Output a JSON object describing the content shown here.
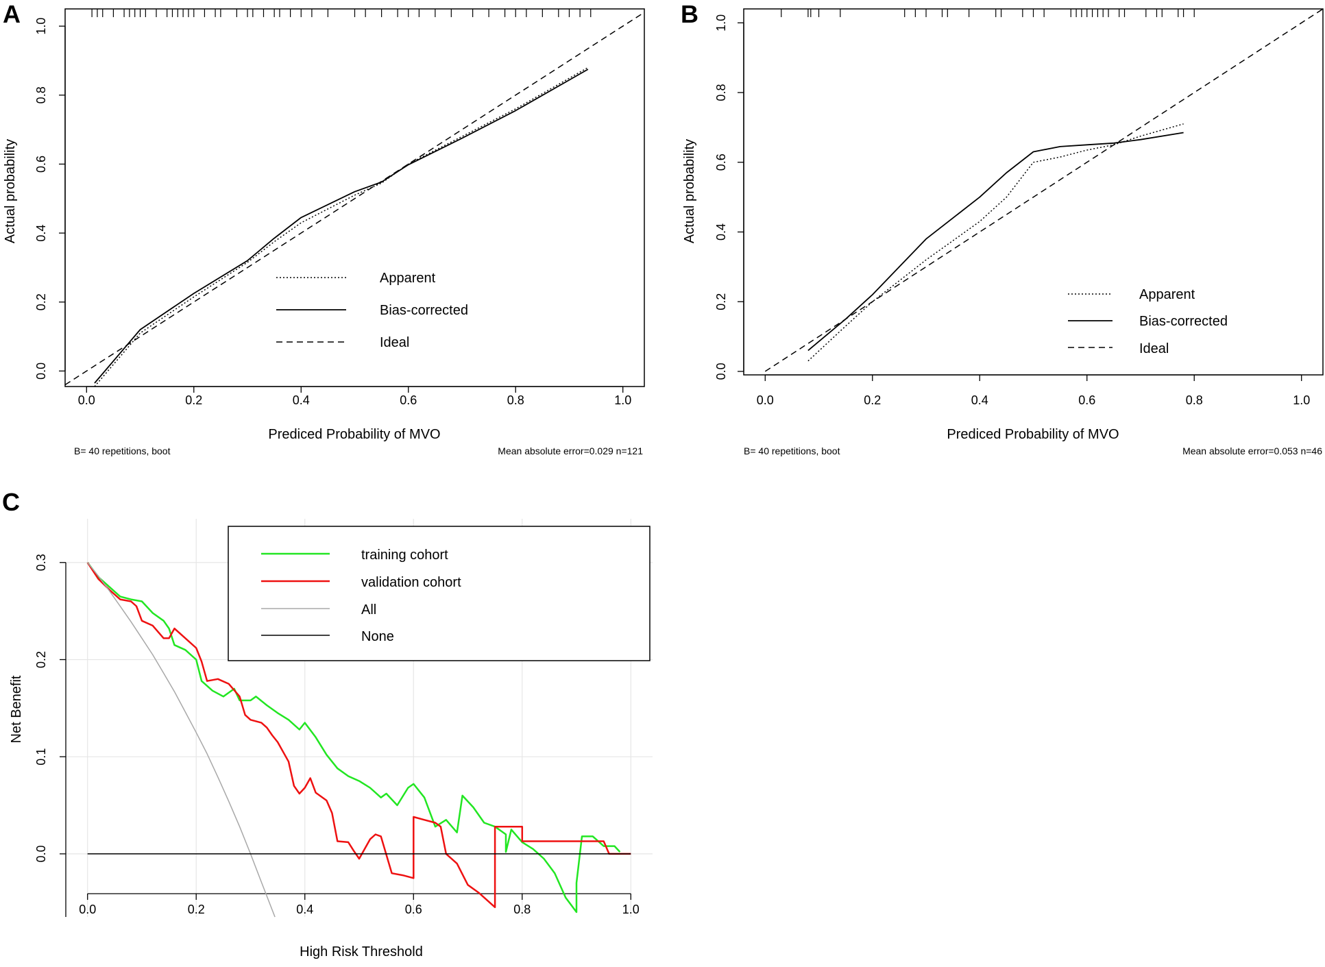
{
  "chart_data": [
    {
      "panel": "A",
      "type": "line",
      "subtype": "calibration",
      "xlabel": "Prediced Probability of MVO",
      "ylabel": "Actual probability",
      "xlim": [
        -0.04,
        1.04
      ],
      "ylim": [
        -0.045,
        1.05
      ],
      "xticks": [
        "0.0",
        "0.2",
        "0.4",
        "0.6",
        "0.8",
        "1.0"
      ],
      "yticks": [
        "0.0",
        "0.2",
        "0.4",
        "0.6",
        "0.8",
        "1.0"
      ],
      "footer_left": "B= 40 repetitions, boot",
      "footer_right": "Mean absolute error=0.029 n=121",
      "legend": [
        "Apparent",
        "Bias-corrected",
        "Ideal"
      ],
      "series": [
        {
          "name": "Apparent",
          "style": "dotted",
          "x": [
            0.015,
            0.1,
            0.2,
            0.3,
            0.35,
            0.4,
            0.5,
            0.55,
            0.6,
            0.7,
            0.8,
            0.935
          ],
          "y": [
            -0.045,
            0.11,
            0.215,
            0.315,
            0.375,
            0.43,
            0.51,
            0.545,
            0.6,
            0.68,
            0.76,
            0.88
          ]
        },
        {
          "name": "Bias-corrected",
          "style": "solid",
          "x": [
            0.015,
            0.1,
            0.2,
            0.3,
            0.35,
            0.4,
            0.5,
            0.55,
            0.6,
            0.7,
            0.8,
            0.935
          ],
          "y": [
            -0.035,
            0.12,
            0.225,
            0.32,
            0.385,
            0.445,
            0.52,
            0.548,
            0.598,
            0.675,
            0.755,
            0.875
          ]
        },
        {
          "name": "Ideal",
          "style": "dashed",
          "x": [
            -0.04,
            1.04
          ],
          "y": [
            -0.04,
            1.04
          ]
        }
      ],
      "rug": [
        0.01,
        0.02,
        0.03,
        0.05,
        0.07,
        0.08,
        0.09,
        0.1,
        0.11,
        0.13,
        0.15,
        0.16,
        0.17,
        0.18,
        0.19,
        0.2,
        0.22,
        0.24,
        0.25,
        0.28,
        0.3,
        0.31,
        0.33,
        0.35,
        0.36,
        0.38,
        0.4,
        0.42,
        0.45,
        0.5,
        0.52,
        0.55,
        0.58,
        0.6,
        0.62,
        0.65,
        0.68,
        0.72,
        0.75,
        0.78,
        0.8,
        0.82,
        0.85,
        0.88,
        0.9,
        0.92,
        0.94
      ]
    },
    {
      "panel": "B",
      "type": "line",
      "subtype": "calibration",
      "xlabel": "Prediced Probability of MVO",
      "ylabel": "Actual probability",
      "xlim": [
        -0.04,
        1.04
      ],
      "ylim": [
        -0.01,
        1.04
      ],
      "xticks": [
        "0.0",
        "0.2",
        "0.4",
        "0.6",
        "0.8",
        "1.0"
      ],
      "yticks": [
        "0.0",
        "0.2",
        "0.4",
        "0.6",
        "0.8",
        "1.0"
      ],
      "footer_left": "B= 40 repetitions, boot",
      "footer_right": "Mean absolute error=0.053 n=46",
      "legend": [
        "Apparent",
        "Bias-corrected",
        "Ideal"
      ],
      "series": [
        {
          "name": "Apparent",
          "style": "dotted",
          "x": [
            0.08,
            0.15,
            0.2,
            0.3,
            0.4,
            0.45,
            0.5,
            0.55,
            0.6,
            0.65,
            0.7,
            0.78
          ],
          "y": [
            0.03,
            0.13,
            0.2,
            0.32,
            0.43,
            0.5,
            0.6,
            0.615,
            0.635,
            0.65,
            0.675,
            0.71
          ]
        },
        {
          "name": "Bias-corrected",
          "style": "solid",
          "x": [
            0.08,
            0.15,
            0.2,
            0.3,
            0.4,
            0.45,
            0.5,
            0.55,
            0.6,
            0.65,
            0.7,
            0.78
          ],
          "y": [
            0.06,
            0.15,
            0.22,
            0.38,
            0.5,
            0.57,
            0.63,
            0.645,
            0.65,
            0.655,
            0.665,
            0.685
          ]
        },
        {
          "name": "Ideal",
          "style": "dashed",
          "x": [
            0.0,
            1.04
          ],
          "y": [
            0.0,
            1.04
          ]
        }
      ],
      "rug": [
        0.03,
        0.08,
        0.085,
        0.1,
        0.14,
        0.26,
        0.28,
        0.3,
        0.33,
        0.34,
        0.38,
        0.43,
        0.44,
        0.48,
        0.5,
        0.52,
        0.57,
        0.58,
        0.59,
        0.6,
        0.61,
        0.62,
        0.63,
        0.64,
        0.66,
        0.67,
        0.71,
        0.73,
        0.74,
        0.77,
        0.78,
        0.8
      ]
    },
    {
      "panel": "C",
      "type": "line",
      "subtype": "decision-curve",
      "xlabel": "High Risk Threshold",
      "ylabel": "Net Benefit",
      "xlim": [
        -0.04,
        1.04
      ],
      "ylim": [
        -0.065,
        0.345
      ],
      "xticks": [
        "0.0",
        "0.2",
        "0.4",
        "0.6",
        "0.8",
        "1.0"
      ],
      "yticks": [
        "0.0",
        "0.1",
        "0.2",
        "0.3"
      ],
      "grid": true,
      "legend": [
        "training cohort",
        "validation cohort",
        "All",
        "None"
      ],
      "legend_colors": [
        "#22e622",
        "#ee1111",
        "#a8a8a8",
        "#000000"
      ],
      "series": [
        {
          "name": "training cohort",
          "color": "#22e622",
          "x": [
            0.0,
            0.02,
            0.04,
            0.06,
            0.08,
            0.1,
            0.12,
            0.14,
            0.15,
            0.16,
            0.18,
            0.2,
            0.21,
            0.23,
            0.25,
            0.27,
            0.28,
            0.3,
            0.31,
            0.33,
            0.35,
            0.37,
            0.39,
            0.4,
            0.42,
            0.44,
            0.46,
            0.48,
            0.5,
            0.52,
            0.54,
            0.55,
            0.57,
            0.59,
            0.6,
            0.62,
            0.64,
            0.66,
            0.68,
            0.69,
            0.71,
            0.73,
            0.75,
            0.77,
            0.77,
            0.78,
            0.8,
            0.82,
            0.84,
            0.86,
            0.88,
            0.9,
            0.9,
            0.91,
            0.93,
            0.95,
            0.97,
            0.98
          ],
          "y": [
            0.3,
            0.285,
            0.275,
            0.265,
            0.262,
            0.26,
            0.248,
            0.24,
            0.232,
            0.215,
            0.21,
            0.2,
            0.178,
            0.168,
            0.162,
            0.17,
            0.158,
            0.158,
            0.162,
            0.153,
            0.145,
            0.138,
            0.128,
            0.135,
            0.12,
            0.102,
            0.088,
            0.08,
            0.075,
            0.068,
            0.058,
            0.062,
            0.05,
            0.068,
            0.072,
            0.058,
            0.028,
            0.035,
            0.022,
            0.06,
            0.048,
            0.032,
            0.028,
            0.02,
            0.002,
            0.025,
            0.012,
            0.005,
            -0.005,
            -0.02,
            -0.045,
            -0.06,
            -0.03,
            0.018,
            0.018,
            0.008,
            0.008,
            0.002
          ]
        },
        {
          "name": "validation cohort",
          "color": "#ee1111",
          "x": [
            0.0,
            0.02,
            0.04,
            0.06,
            0.08,
            0.09,
            0.1,
            0.12,
            0.14,
            0.15,
            0.16,
            0.18,
            0.2,
            0.21,
            0.22,
            0.24,
            0.26,
            0.28,
            0.29,
            0.3,
            0.32,
            0.33,
            0.34,
            0.35,
            0.37,
            0.38,
            0.39,
            0.4,
            0.41,
            0.42,
            0.44,
            0.45,
            0.46,
            0.48,
            0.49,
            0.5,
            0.52,
            0.53,
            0.54,
            0.56,
            0.58,
            0.6,
            0.6,
            0.62,
            0.64,
            0.65,
            0.66,
            0.68,
            0.7,
            0.72,
            0.75,
            0.75,
            0.76,
            0.8,
            0.8,
            0.84,
            0.88,
            0.9,
            0.92,
            0.95,
            0.96,
            0.98,
            1.0
          ],
          "y": [
            0.3,
            0.283,
            0.272,
            0.262,
            0.26,
            0.255,
            0.24,
            0.235,
            0.222,
            0.222,
            0.232,
            0.222,
            0.212,
            0.198,
            0.178,
            0.18,
            0.175,
            0.162,
            0.143,
            0.138,
            0.135,
            0.13,
            0.122,
            0.115,
            0.095,
            0.07,
            0.062,
            0.068,
            0.078,
            0.063,
            0.055,
            0.042,
            0.013,
            0.012,
            0.003,
            -0.005,
            0.015,
            0.02,
            0.018,
            -0.02,
            -0.022,
            -0.025,
            0.038,
            0.035,
            0.032,
            0.028,
            0.0,
            -0.01,
            -0.032,
            -0.04,
            -0.055,
            0.028,
            0.028,
            0.028,
            0.013,
            0.013,
            0.013,
            0.013,
            0.013,
            0.013,
            0.0,
            0.0,
            0.0
          ]
        },
        {
          "name": "All",
          "color": "#a8a8a8",
          "x": [
            0.0,
            0.02,
            0.04,
            0.06,
            0.08,
            0.1,
            0.12,
            0.14,
            0.16,
            0.18,
            0.2,
            0.22,
            0.24,
            0.26,
            0.28,
            0.3,
            0.32,
            0.345
          ],
          "y": [
            0.3,
            0.286,
            0.271,
            0.255,
            0.239,
            0.222,
            0.205,
            0.186,
            0.167,
            0.146,
            0.125,
            0.103,
            0.079,
            0.054,
            0.028,
            0.0,
            -0.029,
            -0.065
          ]
        },
        {
          "name": "None",
          "color": "#000000",
          "x": [
            0.0,
            1.0
          ],
          "y": [
            0.0,
            0.0
          ]
        }
      ]
    }
  ]
}
